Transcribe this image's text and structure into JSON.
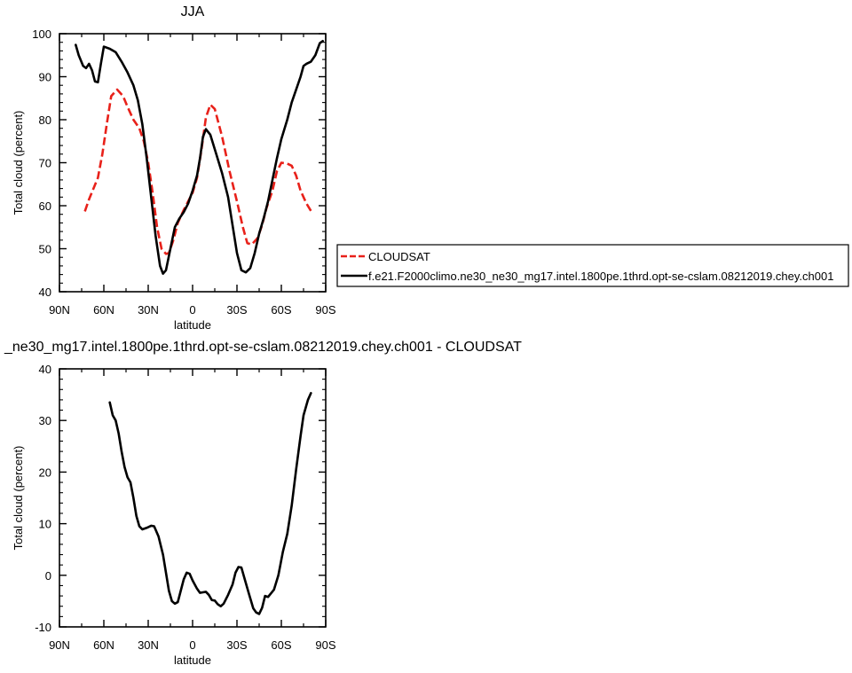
{
  "chart_data": [
    {
      "type": "line",
      "title": "JJA",
      "xlabel": "latitude",
      "ylabel": "Total cloud (percent)",
      "xlim": [
        90,
        -90
      ],
      "ylim": [
        40,
        100
      ],
      "xticks": [
        90,
        60,
        30,
        0,
        -30,
        -60,
        -90
      ],
      "xtick_labels": [
        "90N",
        "60N",
        "30N",
        "0",
        "30S",
        "60S",
        "90S"
      ],
      "yticks": [
        40,
        50,
        60,
        70,
        80,
        90,
        100
      ],
      "ytick_labels": [
        "40",
        "50",
        "60",
        "70",
        "80",
        "90",
        "100"
      ],
      "legend": "right, outside plot",
      "series": [
        {
          "name": "CLOUDSAT",
          "color": "#e8211a",
          "dash": "dashed",
          "points": [
            [
              -80,
              58.8
            ],
            [
              -77,
              60.5
            ],
            [
              -73,
              63.5
            ],
            [
              -70,
              67
            ],
            [
              -67,
              69.3
            ],
            [
              -64,
              69.8
            ],
            [
              -60,
              70
            ],
            [
              -57,
              68
            ],
            [
              -54,
              63.5
            ],
            [
              -50,
              59.5
            ],
            [
              -47,
              55.5
            ],
            [
              -44,
              52.5
            ],
            [
              -40,
              51
            ],
            [
              -37,
              51.3
            ],
            [
              -34,
              55
            ],
            [
              -30,
              61
            ],
            [
              -25,
              68
            ],
            [
              -20,
              76
            ],
            [
              -15,
              82.5
            ],
            [
              -12,
              83.5
            ],
            [
              -9,
              80.5
            ],
            [
              -6,
              73
            ],
            [
              -3,
              66.5
            ],
            [
              0,
              63
            ],
            [
              3,
              61
            ],
            [
              6,
              59
            ],
            [
              10,
              56
            ],
            [
              13,
              52
            ],
            [
              16,
              49
            ],
            [
              18,
              48.8
            ],
            [
              21,
              50
            ],
            [
              24,
              55
            ],
            [
              27,
              63
            ],
            [
              30,
              70
            ],
            [
              33,
              75
            ],
            [
              36,
              78
            ],
            [
              40,
              80
            ],
            [
              44,
              83
            ],
            [
              47,
              85.5
            ],
            [
              51,
              87
            ],
            [
              55,
              85.5
            ],
            [
              58,
              79
            ],
            [
              61,
              72
            ],
            [
              64,
              66.5
            ],
            [
              67,
              64
            ],
            [
              70,
              61.5
            ],
            [
              73,
              58.5
            ]
          ]
        },
        {
          "name": "f.e21.F2000climo.ne30_ne30_mg17.intel.1800pe.1thrd.opt-se-cslam.08212019.chey.ch001",
          "color": "#000000",
          "dash": "solid",
          "points": [
            [
              -88,
              98.3
            ],
            [
              -86,
              97.8
            ],
            [
              -83,
              95
            ],
            [
              -80,
              93.5
            ],
            [
              -77,
              93
            ],
            [
              -75,
              92.5
            ],
            [
              -73,
              90
            ],
            [
              -70,
              87
            ],
            [
              -67,
              84
            ],
            [
              -64,
              80
            ],
            [
              -60,
              75.5
            ],
            [
              -57,
              71
            ],
            [
              -54,
              66
            ],
            [
              -51,
              61
            ],
            [
              -48,
              57
            ],
            [
              -45,
              53.5
            ],
            [
              -42,
              49
            ],
            [
              -39,
              45.5
            ],
            [
              -36,
              44.5
            ],
            [
              -33,
              45
            ],
            [
              -30,
              49
            ],
            [
              -27,
              55.5
            ],
            [
              -24,
              62
            ],
            [
              -20,
              67.5
            ],
            [
              -16,
              72
            ],
            [
              -12,
              76.5
            ],
            [
              -9,
              77.8
            ],
            [
              -7,
              76
            ],
            [
              -5,
              71
            ],
            [
              -3,
              67
            ],
            [
              0,
              63.5
            ],
            [
              3,
              60.5
            ],
            [
              6,
              58.5
            ],
            [
              9,
              57
            ],
            [
              12,
              55
            ],
            [
              15,
              50
            ],
            [
              18,
              45
            ],
            [
              20,
              44.2
            ],
            [
              22,
              46
            ],
            [
              25,
              53
            ],
            [
              28,
              62
            ],
            [
              31,
              71
            ],
            [
              34,
              79
            ],
            [
              37,
              84.5
            ],
            [
              40,
              88
            ],
            [
              44,
              91
            ],
            [
              48,
              93.5
            ],
            [
              52,
              95.7
            ],
            [
              56,
              96.5
            ],
            [
              60,
              97
            ],
            [
              62,
              93
            ],
            [
              64,
              88.7
            ],
            [
              66,
              88.9
            ],
            [
              68,
              91.5
            ],
            [
              70,
              93
            ],
            [
              72,
              92
            ],
            [
              74,
              92.5
            ],
            [
              77,
              95
            ],
            [
              79,
              97.4
            ]
          ]
        }
      ]
    },
    {
      "type": "line",
      "title": "_ne30_mg17.intel.1800pe.1thrd.opt-se-cslam.08212019.chey.ch001 - CLOUDSAT",
      "xlabel": "latitude",
      "ylabel": "Total cloud (percent)",
      "xlim": [
        90,
        -90
      ],
      "ylim": [
        -10,
        40
      ],
      "xticks": [
        90,
        60,
        30,
        0,
        -30,
        -60,
        -90
      ],
      "xtick_labels": [
        "90N",
        "60N",
        "30N",
        "0",
        "30S",
        "60S",
        "90S"
      ],
      "yticks": [
        -10,
        0,
        10,
        20,
        30,
        40
      ],
      "ytick_labels": [
        "-10",
        "0",
        "10",
        "20",
        "30",
        "40"
      ],
      "series": [
        {
          "color": "#000000",
          "dash": "solid",
          "points": [
            [
              -80,
              35.3
            ],
            [
              -78,
              34
            ],
            [
              -75,
              31
            ],
            [
              -73,
              27
            ],
            [
              -70,
              20.5
            ],
            [
              -67,
              13.5
            ],
            [
              -64,
              8
            ],
            [
              -61,
              4.5
            ],
            [
              -58,
              0
            ],
            [
              -55,
              -2.8
            ],
            [
              -53,
              -3.5
            ],
            [
              -51,
              -4.2
            ],
            [
              -49,
              -4
            ],
            [
              -47,
              -6.3
            ],
            [
              -45,
              -7.5
            ],
            [
              -43,
              -7.2
            ],
            [
              -41,
              -6.4
            ],
            [
              -38,
              -3.5
            ],
            [
              -35,
              -0.5
            ],
            [
              -33,
              1.5
            ],
            [
              -31,
              1.6
            ],
            [
              -29,
              0.5
            ],
            [
              -27,
              -1.8
            ],
            [
              -24,
              -3.8
            ],
            [
              -21,
              -5.5
            ],
            [
              -19,
              -6
            ],
            [
              -17,
              -5.6
            ],
            [
              -15,
              -4.9
            ],
            [
              -13,
              -4.8
            ],
            [
              -11,
              -3.8
            ],
            [
              -9,
              -3.2
            ],
            [
              -7,
              -3.3
            ],
            [
              -5,
              -3.4
            ],
            [
              -3,
              -2.6
            ],
            [
              0,
              -1
            ],
            [
              2,
              0.3
            ],
            [
              4,
              0.5
            ],
            [
              6,
              -0.8
            ],
            [
              8,
              -3
            ],
            [
              10,
              -5.2
            ],
            [
              12,
              -5.5
            ],
            [
              14,
              -5
            ],
            [
              16,
              -3
            ],
            [
              18,
              0.5
            ],
            [
              20,
              4
            ],
            [
              23,
              7.5
            ],
            [
              26,
              9.5
            ],
            [
              28,
              9.6
            ],
            [
              31,
              9.2
            ],
            [
              34,
              8.9
            ],
            [
              36,
              9.5
            ],
            [
              38,
              11.5
            ],
            [
              40,
              15
            ],
            [
              42,
              18
            ],
            [
              44,
              19
            ],
            [
              46,
              21
            ],
            [
              48,
              24
            ],
            [
              50,
              27.5
            ],
            [
              52,
              30
            ],
            [
              54,
              31
            ],
            [
              56,
              33.5
            ]
          ]
        }
      ]
    }
  ]
}
